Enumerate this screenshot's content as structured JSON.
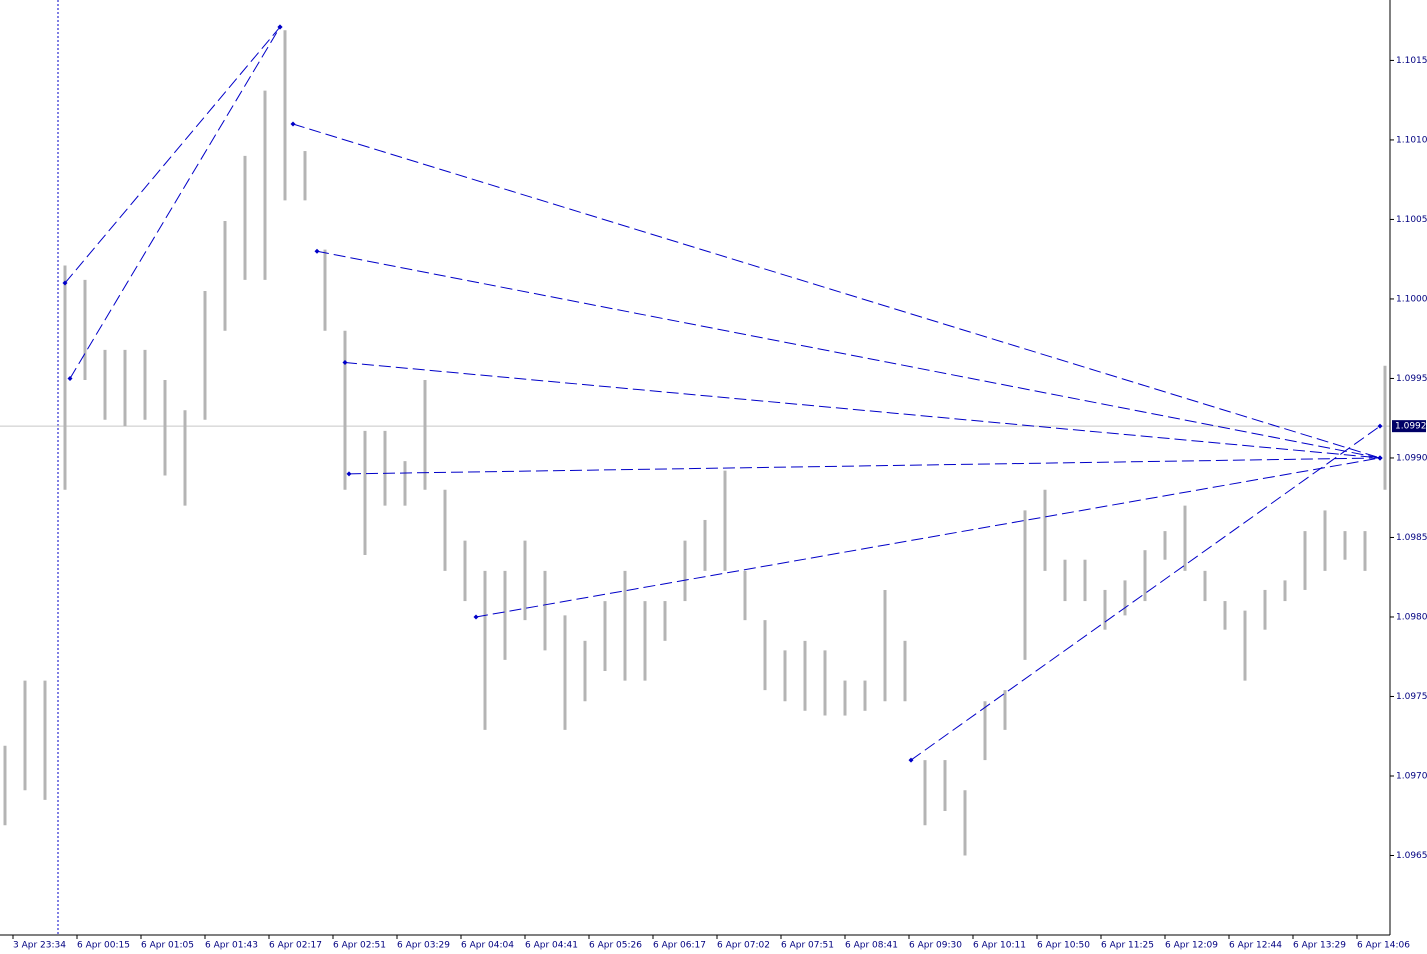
{
  "chart_data": {
    "type": "ohlc",
    "color": "#b4b4b4",
    "line_color": "#0000c8",
    "bid_color": "#000066",
    "x": [
      0,
      1,
      2,
      3,
      4,
      5,
      6,
      7,
      8,
      9,
      10,
      11,
      12,
      13,
      14,
      15,
      16,
      17,
      18,
      19,
      20,
      21,
      22,
      23,
      24,
      25,
      26,
      27,
      28,
      29,
      30,
      31,
      32,
      33,
      34,
      35,
      36,
      37,
      38,
      39,
      40,
      41,
      42,
      43,
      44,
      45,
      46,
      47,
      48,
      49,
      50,
      51,
      52,
      53,
      54,
      55,
      56,
      57,
      58,
      59,
      60,
      61,
      62,
      63,
      64,
      65,
      66,
      67,
      68,
      69
    ],
    "low": [
      1.09669,
      1.09691,
      1.09685,
      1.0988,
      1.09949,
      1.09924,
      1.0992,
      1.09924,
      1.09889,
      1.0987,
      1.09924,
      1.0998,
      1.10012,
      1.10012,
      1.10062,
      1.10062,
      1.0998,
      1.0988,
      1.09839,
      1.0987,
      1.0987,
      1.0988,
      1.09829,
      1.0981,
      1.09729,
      1.09773,
      1.09798,
      1.09779,
      1.09729,
      1.09747,
      1.09766,
      1.0976,
      1.0976,
      1.09785,
      1.0981,
      1.09829,
      1.09829,
      1.09798,
      1.09754,
      1.09747,
      1.09741,
      1.09738,
      1.09738,
      1.09741,
      1.09747,
      1.09747,
      1.09669,
      1.09678,
      1.0965,
      1.0971,
      1.09729,
      1.09773,
      1.09829,
      1.0981,
      1.0981,
      1.09792,
      1.09801,
      1.0981,
      1.09836,
      1.09829,
      1.0981,
      1.09792,
      1.0976,
      1.09792,
      1.0981,
      1.09817,
      1.09829,
      1.09836,
      1.09829,
      1.0988
    ],
    "high": [
      1.09719,
      1.0976,
      1.0976,
      1.10021,
      1.10012,
      1.09968,
      1.09968,
      1.09968,
      1.09949,
      1.0993,
      1.10005,
      1.10049,
      1.1009,
      1.10131,
      1.10169,
      1.10093,
      1.10031,
      1.0998,
      1.09917,
      1.09917,
      1.09898,
      1.09949,
      1.0988,
      1.09848,
      1.09829,
      1.09829,
      1.09848,
      1.09829,
      1.09801,
      1.09785,
      1.0981,
      1.09829,
      1.0981,
      1.0981,
      1.09848,
      1.09861,
      1.09892,
      1.09829,
      1.09798,
      1.09779,
      1.09785,
      1.09779,
      1.0976,
      1.0976,
      1.09817,
      1.09785,
      1.0971,
      1.0971,
      1.09691,
      1.09747,
      1.09754,
      1.09867,
      1.0988,
      1.09836,
      1.09836,
      1.09817,
      1.09823,
      1.09842,
      1.09854,
      1.0987,
      1.09829,
      1.0981,
      1.09804,
      1.09817,
      1.09823,
      1.09854,
      1.09867,
      1.09854,
      1.09854,
      1.09958
    ],
    "trendlines": [
      {
        "x": [
          3,
          13.75
        ],
        "y": [
          1.1001,
          1.10171
        ]
      },
      {
        "x": [
          3.25,
          13.75
        ],
        "y": [
          1.0995,
          1.10171
        ]
      },
      {
        "x": [
          14.4,
          68.75
        ],
        "y": [
          1.1011,
          1.099
        ]
      },
      {
        "x": [
          15.6,
          68.75
        ],
        "y": [
          1.1003,
          1.099
        ]
      },
      {
        "x": [
          17,
          68.75
        ],
        "y": [
          1.0996,
          1.099
        ]
      },
      {
        "x": [
          17.2,
          68.75
        ],
        "y": [
          1.0989,
          1.099
        ]
      },
      {
        "x": [
          23.55,
          68.75
        ],
        "y": [
          1.098,
          1.099
        ]
      },
      {
        "x": [
          45.3,
          68.75
        ],
        "y": [
          1.0971,
          1.0992
        ]
      }
    ],
    "separators": [
      2.65
    ],
    "bid": 1.0992,
    "xlim": [
      -0.25,
      69.25
    ],
    "ylim": [
      1.096,
      1.10188
    ],
    "yticks": [
      1.0965,
      {
        "value": 1.097,
        "label": "1.0970"
      },
      1.0975,
      {
        "value": 1.098,
        "label": "1.0980"
      },
      1.0985,
      {
        "value": 1.099,
        "label": "1.0990"
      },
      1.0995,
      {
        "value": 1.1,
        "label": "1.1000"
      },
      1.1005,
      {
        "value": 1.101,
        "label": "1.1010"
      },
      1.1015
    ],
    "xticks": [
      {
        "value": 0.4,
        "label": "3 Apr 23:34"
      },
      {
        "value": 3.6,
        "label": "6 Apr 00:15"
      },
      {
        "value": 6.8,
        "label": "6 Apr 01:05"
      },
      {
        "value": 10,
        "label": "6 Apr 01:43"
      },
      {
        "value": 13.2,
        "label": "6 Apr 02:17"
      },
      {
        "value": 16.4,
        "label": "6 Apr 02:51"
      },
      {
        "value": 19.6,
        "label": "6 Apr 03:29"
      },
      {
        "value": 22.8,
        "label": "6 Apr 04:04"
      },
      {
        "value": 26,
        "label": "6 Apr 04:41"
      },
      {
        "value": 29.2,
        "label": "6 Apr 05:26"
      },
      {
        "value": 32.4,
        "label": "6 Apr 06:17"
      },
      {
        "value": 35.6,
        "label": "6 Apr 07:02"
      },
      {
        "value": 38.8,
        "label": "6 Apr 07:51"
      },
      {
        "value": 42,
        "label": "6 Apr 08:41"
      },
      {
        "value": 45.2,
        "label": "6 Apr 09:30"
      },
      {
        "value": 48.4,
        "label": "6 Apr 10:11"
      },
      {
        "value": 51.6,
        "label": "6 Apr 10:50"
      },
      {
        "value": 54.8,
        "label": "6 Apr 11:25"
      },
      {
        "value": 58,
        "label": "6 Apr 12:09"
      },
      {
        "value": 61.2,
        "label": "6 Apr 12:44"
      },
      {
        "value": 64.4,
        "label": "6 Apr 13:29"
      },
      {
        "value": 67.6,
        "label": "6 Apr 14:06"
      }
    ]
  }
}
